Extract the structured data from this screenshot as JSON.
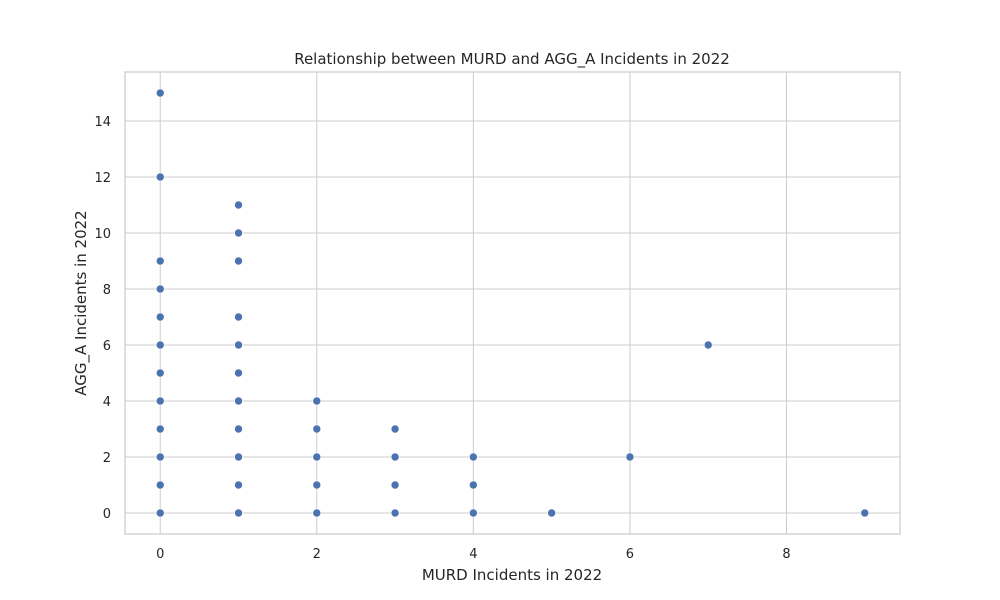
{
  "chart_data": {
    "type": "scatter",
    "title": "Relationship between MURD and AGG_A Incidents in 2022",
    "xlabel": "MURD Incidents in 2022",
    "ylabel": "AGG_A Incidents in 2022",
    "xlim": [
      -0.45,
      9.45
    ],
    "ylim": [
      -0.75,
      15.75
    ],
    "xticks": [
      0,
      2,
      4,
      6,
      8
    ],
    "yticks": [
      0,
      2,
      4,
      6,
      8,
      10,
      12,
      14
    ],
    "grid": true,
    "color": "#4c72b0",
    "points": [
      {
        "x": 0,
        "y": 0
      },
      {
        "x": 0,
        "y": 1
      },
      {
        "x": 0,
        "y": 2
      },
      {
        "x": 0,
        "y": 3
      },
      {
        "x": 0,
        "y": 4
      },
      {
        "x": 0,
        "y": 5
      },
      {
        "x": 0,
        "y": 6
      },
      {
        "x": 0,
        "y": 7
      },
      {
        "x": 0,
        "y": 8
      },
      {
        "x": 0,
        "y": 9
      },
      {
        "x": 0,
        "y": 12
      },
      {
        "x": 0,
        "y": 15
      },
      {
        "x": 1,
        "y": 0
      },
      {
        "x": 1,
        "y": 1
      },
      {
        "x": 1,
        "y": 2
      },
      {
        "x": 1,
        "y": 3
      },
      {
        "x": 1,
        "y": 4
      },
      {
        "x": 1,
        "y": 5
      },
      {
        "x": 1,
        "y": 6
      },
      {
        "x": 1,
        "y": 7
      },
      {
        "x": 1,
        "y": 9
      },
      {
        "x": 1,
        "y": 10
      },
      {
        "x": 1,
        "y": 11
      },
      {
        "x": 2,
        "y": 0
      },
      {
        "x": 2,
        "y": 1
      },
      {
        "x": 2,
        "y": 2
      },
      {
        "x": 2,
        "y": 3
      },
      {
        "x": 2,
        "y": 4
      },
      {
        "x": 3,
        "y": 0
      },
      {
        "x": 3,
        "y": 1
      },
      {
        "x": 3,
        "y": 2
      },
      {
        "x": 3,
        "y": 3
      },
      {
        "x": 4,
        "y": 0
      },
      {
        "x": 4,
        "y": 1
      },
      {
        "x": 4,
        "y": 2
      },
      {
        "x": 5,
        "y": 0
      },
      {
        "x": 6,
        "y": 2
      },
      {
        "x": 7,
        "y": 6
      },
      {
        "x": 9,
        "y": 0
      }
    ]
  }
}
